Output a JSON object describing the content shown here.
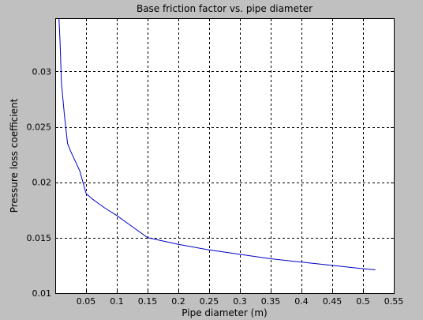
{
  "chart_data": {
    "type": "line",
    "title": "Base friction factor vs. pipe diameter",
    "xlabel": "Pipe diameter (m)",
    "ylabel": "Pressure loss coefficient",
    "xlim": [
      0.0,
      0.55
    ],
    "ylim": [
      0.01,
      0.0348
    ],
    "xticks": [
      0.05,
      0.1,
      0.15,
      0.2,
      0.25,
      0.3,
      0.35,
      0.4,
      0.45,
      0.5,
      0.55
    ],
    "xtick_labels": [
      "0.05",
      "0.1",
      "0.15",
      "0.2",
      "0.25",
      "0.3",
      "0.35",
      "0.4",
      "0.45",
      "0.5",
      "0.55"
    ],
    "yticks": [
      0.01,
      0.015,
      0.02,
      0.025,
      0.03
    ],
    "ytick_labels": [
      "0.01",
      "0.015",
      "0.02",
      "0.025",
      "0.03"
    ],
    "grid": true,
    "grid_style": "dashed",
    "series": [
      {
        "color": "#0000c8",
        "x": [
          0.006,
          0.008,
          0.01,
          0.015,
          0.02,
          0.025,
          0.03,
          0.04,
          0.05,
          0.06,
          0.08,
          0.1,
          0.12,
          0.15,
          0.2,
          0.25,
          0.3,
          0.35,
          0.4,
          0.45,
          0.5,
          0.52
        ],
        "y": [
          0.0348,
          0.0325,
          0.029,
          0.026,
          0.0235,
          0.0228,
          0.0222,
          0.021,
          0.019,
          0.0185,
          0.0177,
          0.017,
          0.0162,
          0.015,
          0.0144,
          0.0139,
          0.0135,
          0.0131,
          0.0128,
          0.0125,
          0.0122,
          0.0121
        ]
      }
    ]
  },
  "colors": {
    "figure_background": "#c0c0c0",
    "axes_background": "#ffffff",
    "line": "#0000c8"
  }
}
